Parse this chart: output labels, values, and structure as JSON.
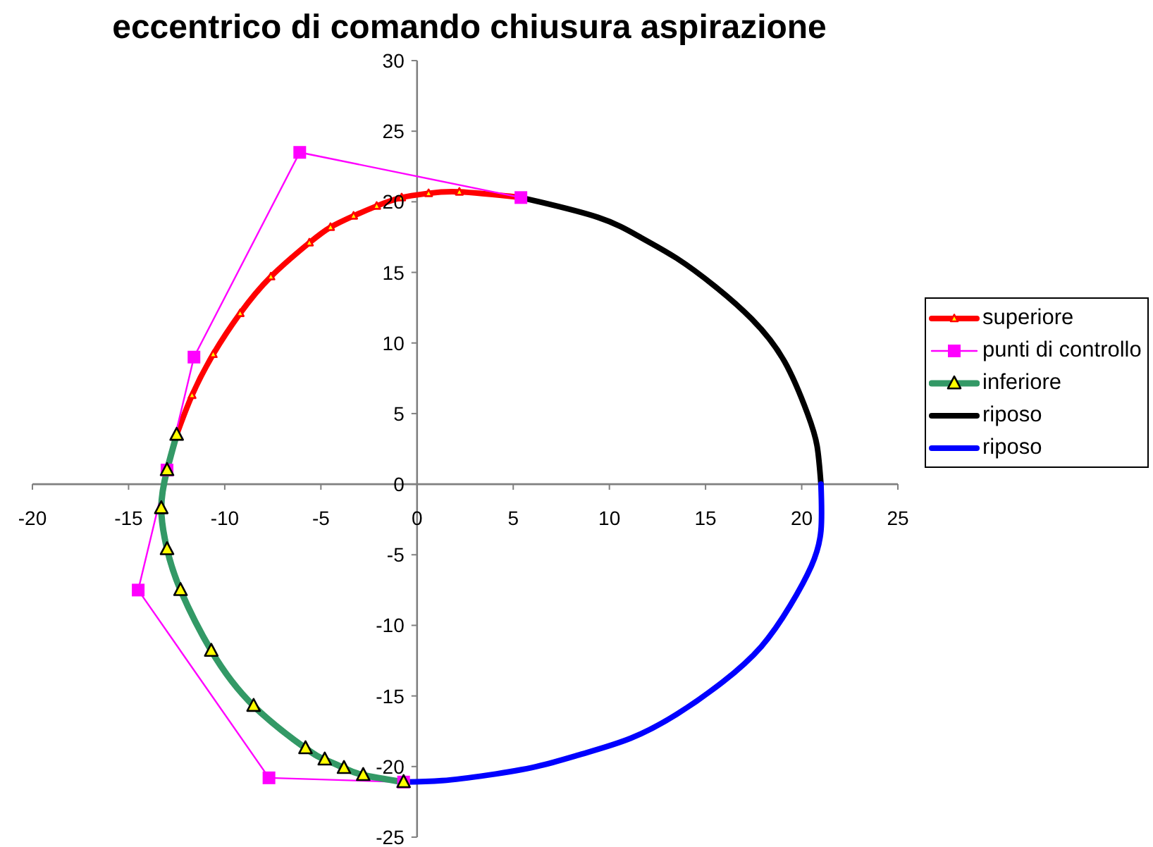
{
  "chart_data": {
    "type": "line",
    "title": "eccentrico di comando chiusura aspirazione",
    "xlim": [
      -20,
      25
    ],
    "xticks": [
      -20,
      -15,
      -10,
      -5,
      0,
      5,
      10,
      15,
      20,
      25
    ],
    "ylim": [
      -25,
      30
    ],
    "yticks": [
      -25,
      -20,
      -15,
      -10,
      -5,
      0,
      5,
      10,
      15,
      20,
      25,
      30
    ],
    "legend": "right",
    "series": [
      {
        "name": "superiore",
        "color": "#ff0000",
        "marker": "triangle",
        "x": [
          -12.5,
          -11.7,
          -10.6,
          -9.2,
          -7.6,
          -5.6,
          -4.5,
          -3.3,
          -2.1,
          -0.8,
          0.6,
          2.2,
          5.4
        ],
        "values": [
          3.5,
          6.3,
          9.2,
          12.1,
          14.7,
          17.1,
          18.2,
          19.0,
          19.7,
          20.3,
          20.6,
          20.7,
          20.3
        ]
      },
      {
        "name": "punti di controllo",
        "color": "#ff00ff",
        "marker": "square",
        "x": [
          5.4,
          -6.1,
          -11.6,
          -13.0,
          -14.5,
          -7.7,
          -0.7
        ],
        "values": [
          20.3,
          23.5,
          9.0,
          1.0,
          -7.5,
          -20.8,
          -21.1
        ]
      },
      {
        "name": "inferiore",
        "color": "#339966",
        "marker": "triangle",
        "x": [
          -12.5,
          -13.0,
          -13.3,
          -13.0,
          -12.3,
          -10.7,
          -8.5,
          -5.8,
          -4.8,
          -3.8,
          -2.8,
          -0.7
        ],
        "values": [
          3.5,
          1.0,
          -1.7,
          -4.6,
          -7.5,
          -11.8,
          -15.7,
          -18.7,
          -19.5,
          -20.1,
          -20.6,
          -21.1
        ]
      },
      {
        "name": "riposo",
        "color": "#000000",
        "marker": "none",
        "x": [
          5.4,
          9.4,
          11.6,
          13.5,
          15.5,
          17.4,
          19.1,
          20.3,
          20.8,
          21.0
        ],
        "values": [
          20.3,
          18.9,
          17.5,
          16.0,
          14.0,
          11.7,
          8.7,
          5.0,
          2.7,
          0
        ]
      },
      {
        "name": "riposo",
        "color": "#0000ff",
        "marker": "none",
        "x": [
          21.0,
          21.0,
          20.5,
          19.4,
          17.9,
          15.9,
          13.5,
          11.1,
          8.6,
          6.2,
          3.7,
          1.3,
          -0.7
        ],
        "values": [
          0,
          -3.3,
          -5.8,
          -8.6,
          -11.5,
          -14.0,
          -16.3,
          -18.0,
          -19.1,
          -20.0,
          -20.6,
          -21.0,
          -21.1
        ]
      }
    ]
  }
}
